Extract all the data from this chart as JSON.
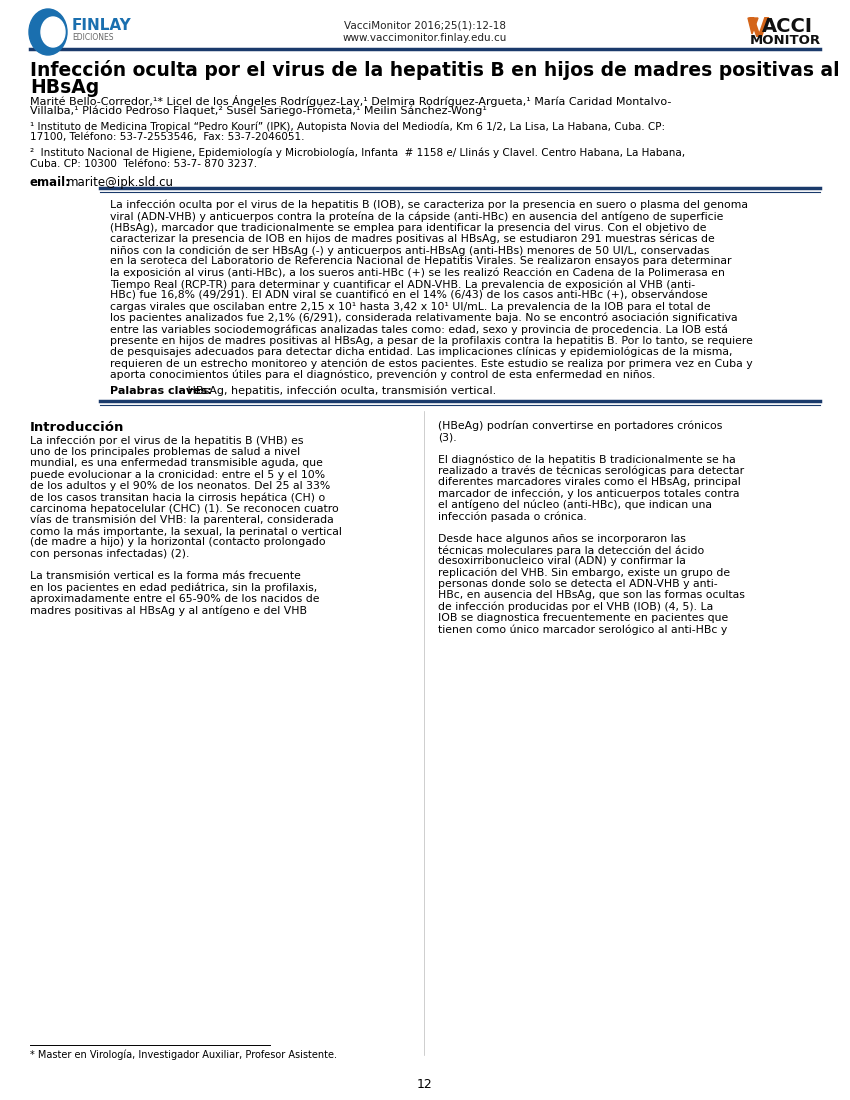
{
  "page_bg": "#ffffff",
  "journal_line1": "VacciMonitor 2016;25(1):12-18",
  "journal_line2": "www.vaccimonitor.finlay.edu.cu",
  "finlay_color": "#1a6faf",
  "vacci_orange": "#d4651a",
  "title_line1": "Infección oculta por el virus de la hepatitis B en hijos de madres positivas al",
  "title_line2": "HBsAg",
  "authors_line1": "Marité Bello-Corredor,¹* Licel de los Ángeles Rodríguez-Lay,¹ Delmira Rodríguez-Argueta,¹ María Caridad Montalvo-",
  "authors_line2": "Villalba,¹ Plácido Pedroso Flaquet,² Susel Sariego-Frómeta,¹ Meilin Sánchez-Wong¹",
  "affil1_line1": "¹ Instituto de Medicina Tropical “Pedro Kourí” (IPK), Autopista Novia del Mediodía, Km 6 1/2, La Lisa, La Habana, Cuba. CP:",
  "affil1_line2": "17100, Teléfono: 53-7-2553546,  Fax: 53-7-2046051.",
  "affil2_line1": "²  Instituto Nacional de Higiene, Epidemiología y Microbiología, Infanta  # 1158 e/ Llinás y Clavel. Centro Habana, La Habana,",
  "affil2_line2": "Cuba. CP: 10300  Teléfono: 53-7- 870 3237.",
  "email_label": "email:",
  "email": "marite@ipk.sld.cu",
  "abstract_lines": [
    "La infección oculta por el virus de la hepatitis B (IOB), se caracteriza por la presencia en suero o plasma del genoma",
    "viral (ADN-VHB) y anticuerpos contra la proteína de la cápside (anti-HBc) en ausencia del antígeno de superficie",
    "(HBsAg), marcador que tradicionalmente se emplea para identificar la presencia del virus. Con el objetivo de",
    "caracterizar la presencia de IOB en hijos de madres positivas al HBsAg, se estudiaron 291 muestras séricas de",
    "niños con la condición de ser HBsAg (-) y anticuerpos anti-HBsAg (anti-HBs) menores de 50 UI/L, conservadas",
    "en la seroteca del Laboratorio de Referencia Nacional de Hepatitis Virales. Se realizaron ensayos para determinar",
    "la exposición al virus (anti-HBc), a los sueros anti-HBc (+) se les realizó Reacción en Cadena de la Polimerasa en",
    "Tiempo Real (RCP-TR) para determinar y cuantificar el ADN-VHB. La prevalencia de exposición al VHB (anti-",
    "HBc) fue 16,8% (49/291). El ADN viral se cuantificó en el 14% (6/43) de los casos anti-HBc (+), observándose",
    "cargas virales que oscilaban entre 2,15 x 10¹ hasta 3,42 x 10¹ UI/mL. La prevalencia de la IOB para el total de",
    "los pacientes analizados fue 2,1% (6/291), considerada relativamente baja. No se encontró asociación significativa",
    "entre las variables sociodemográficas analizadas tales como: edad, sexo y provincia de procedencia. La IOB está",
    "presente en hijos de madres positivas al HBsAg, a pesar de la profilaxis contra la hepatitis B. Por lo tanto, se requiere",
    "de pesquisajes adecuados para detectar dicha entidad. Las implicaciones clínicas y epidemiológicas de la misma,",
    "requieren de un estrecho monitoreo y atención de estos pacientes. Este estudio se realiza por primera vez en Cuba y",
    "aporta conocimientos útiles para el diagnóstico, prevención y control de esta enfermedad en niños."
  ],
  "keywords_label": "Palabras claves:",
  "keywords": " HBsAg, hepatitis, infección oculta, transmisión vertical.",
  "intro_heading": "Introducción",
  "left_col_lines": [
    "La infección por el virus de la hepatitis B (VHB) es",
    "uno de los principales problemas de salud a nivel",
    "mundial, es una enfermedad transmisible aguda, que",
    "puede evolucionar a la cronicidad: entre el 5 y el 10%",
    "de los adultos y el 90% de los neonatos. Del 25 al 33%",
    "de los casos transitan hacia la cirrosis hepática (CH) o",
    "carcinoma hepatocelular (CHC) (1). Se reconocen cuatro",
    "vías de transmisión del VHB: la parenteral, considerada",
    "como la más importante, la sexual, la perinatal o vertical",
    "(de madre a hijo) y la horizontal (contacto prolongado",
    "con personas infectadas) (2).",
    "",
    "La transmisión vertical es la forma más frecuente",
    "en los pacientes en edad pediátrica, sin la profilaxis,",
    "aproximadamente entre el 65-90% de los nacidos de",
    "madres positivas al HBsAg y al antígeno e del VHB"
  ],
  "right_col_lines": [
    "(HBeAg) podrían convertirse en portadores crónicos",
    "(3).",
    "",
    "El diagnóstico de la hepatitis B tradicionalmente se ha",
    "realizado a través de técnicas serológicas para detectar",
    "diferentes marcadores virales como el HBsAg, principal",
    "marcador de infección, y los anticuerpos totales contra",
    "el antígeno del núcleo (anti-HBc), que indican una",
    "infección pasada o crónica.",
    "",
    "Desde hace algunos años se incorporaron las",
    "técnicas moleculares para la detección del ácido",
    "desoxirribonucleico viral (ADN) y confirmar la",
    "replicación del VHB. Sin embargo, existe un grupo de",
    "personas donde solo se detecta el ADN-VHB y anti-",
    "HBc, en ausencia del HBsAg, que son las formas ocultas",
    "de infección producidas por el VHB (IOB) (4, 5). La",
    "IOB se diagnostica frecuentemente en pacientes que",
    "tienen como único marcador serológico al anti-HBc y"
  ],
  "footnote": "* Master en Virología, Investigador Auxiliar, Profesor Asistente.",
  "page_number": "12",
  "sep_color": "#1a3a6b"
}
